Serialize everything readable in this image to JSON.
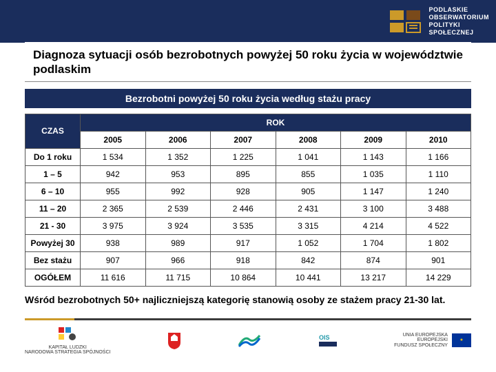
{
  "header": {
    "brand_lines": [
      "PODLASKIE",
      "OBSERWATORIUM",
      "POLITYKI",
      "SPOŁECZNEJ"
    ]
  },
  "title": "Diagnoza sytuacji osób bezrobotnych powyżej 50 roku życia w województwie podlaskim",
  "subtitle": "Bezrobotni powyżej 50 roku życia według stażu pracy",
  "table": {
    "col_group_label": "ROK",
    "row_group_label": "CZAS",
    "columns": [
      "2005",
      "2006",
      "2007",
      "2008",
      "2009",
      "2010"
    ],
    "rows": [
      {
        "label": "Do 1 roku",
        "cells": [
          "1 534",
          "1 352",
          "1 225",
          "1 041",
          "1 143",
          "1 166"
        ]
      },
      {
        "label": "1 – 5",
        "cells": [
          "942",
          "953",
          "895",
          "855",
          "1 035",
          "1 110"
        ]
      },
      {
        "label": "6 – 10",
        "cells": [
          "955",
          "992",
          "928",
          "905",
          "1 147",
          "1 240"
        ]
      },
      {
        "label": "11 – 20",
        "cells": [
          "2 365",
          "2 539",
          "2 446",
          "2 431",
          "3 100",
          "3 488"
        ]
      },
      {
        "label": "21 - 30",
        "cells": [
          "3 975",
          "3 924",
          "3 535",
          "3 315",
          "4 214",
          "4 522"
        ]
      },
      {
        "label": "Powyżej 30",
        "cells": [
          "938",
          "989",
          "917",
          "1 052",
          "1 704",
          "1 802"
        ]
      },
      {
        "label": "Bez stażu",
        "cells": [
          "907",
          "966",
          "918",
          "842",
          "874",
          "901"
        ]
      },
      {
        "label": "OGÓŁEM",
        "cells": [
          "11 616",
          "11 715",
          "10 864",
          "10 441",
          "13 217",
          "14 229"
        ]
      }
    ],
    "header_bg": "#1a2d5c",
    "header_fg": "#ffffff",
    "border_color": "#555555",
    "cell_font_size": 12
  },
  "footnote": "Wśród bezrobotnych 50+ najliczniejszą kategorię stanowią osoby ze stażem pracy 21-30 lat.",
  "footer": {
    "logos": [
      {
        "name": "kapital-ludzki",
        "caption": "KAPITAŁ LUDZKI\nNARODOWA STRATEGIA SPÓJNOŚCI"
      },
      {
        "name": "podlaskie-coat",
        "caption": ""
      },
      {
        "name": "rops",
        "caption": ""
      },
      {
        "name": "ois",
        "caption": ""
      },
      {
        "name": "eu",
        "caption": "UNIA EUROPEJSKA\nEUROPEJSKI\nFUNDUSZ SPOŁECZNY"
      }
    ]
  },
  "colors": {
    "primary": "#1a2d5c",
    "accent": "#cc9a29",
    "rule": "#3b3b3b",
    "bg": "#ffffff"
  }
}
